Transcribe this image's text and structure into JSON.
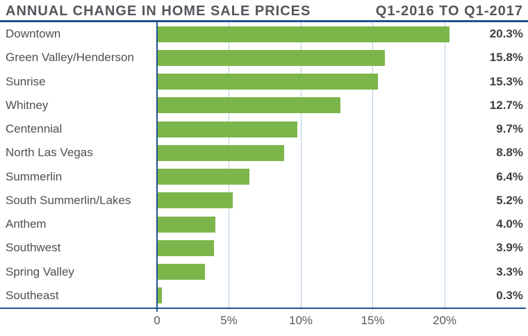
{
  "header": {
    "title": "ANNUAL CHANGE IN HOME SALE PRICES",
    "period": "Q1-2016 TO Q1-2017"
  },
  "chart_data": {
    "type": "bar",
    "orientation": "horizontal",
    "title": "ANNUAL CHANGE IN HOME SALE PRICES",
    "subtitle": "Q1-2016 TO Q1-2017",
    "unit": "percent",
    "categories": [
      "Downtown",
      "Green Valley/Henderson",
      "Sunrise",
      "Whitney",
      "Centennial",
      "North Las Vegas",
      "Summerlin",
      "South Summerlin/Lakes",
      "Anthem",
      "Southwest",
      "Spring Valley",
      "Southeast"
    ],
    "values": [
      20.3,
      15.8,
      15.3,
      12.7,
      9.7,
      8.8,
      6.4,
      5.2,
      4.0,
      3.9,
      3.3,
      0.3
    ],
    "value_labels": [
      "20.3%",
      "15.8%",
      "15.3%",
      "12.7%",
      "9.7%",
      "8.8%",
      "6.4%",
      "5.2%",
      "4.0%",
      "3.9%",
      "3.3%",
      "0.3%"
    ],
    "x_ticks": [
      {
        "label": "0",
        "value": 0
      },
      {
        "label": "5%",
        "value": 5
      },
      {
        "label": "10%",
        "value": 10
      },
      {
        "label": "15%",
        "value": 15
      },
      {
        "label": "20%",
        "value": 20
      }
    ],
    "xlim": [
      0,
      25.8
    ],
    "grid": "vertical gridlines at x ticks",
    "legend": "none",
    "colors": {
      "bar": "#7CB64A",
      "axis_line": "#20508F",
      "gridline": "#B7CCE5",
      "title_text": "#54565B",
      "label_text": "#4D4F52",
      "value_text": "#3E3F41",
      "tick_text": "#55575B"
    }
  }
}
